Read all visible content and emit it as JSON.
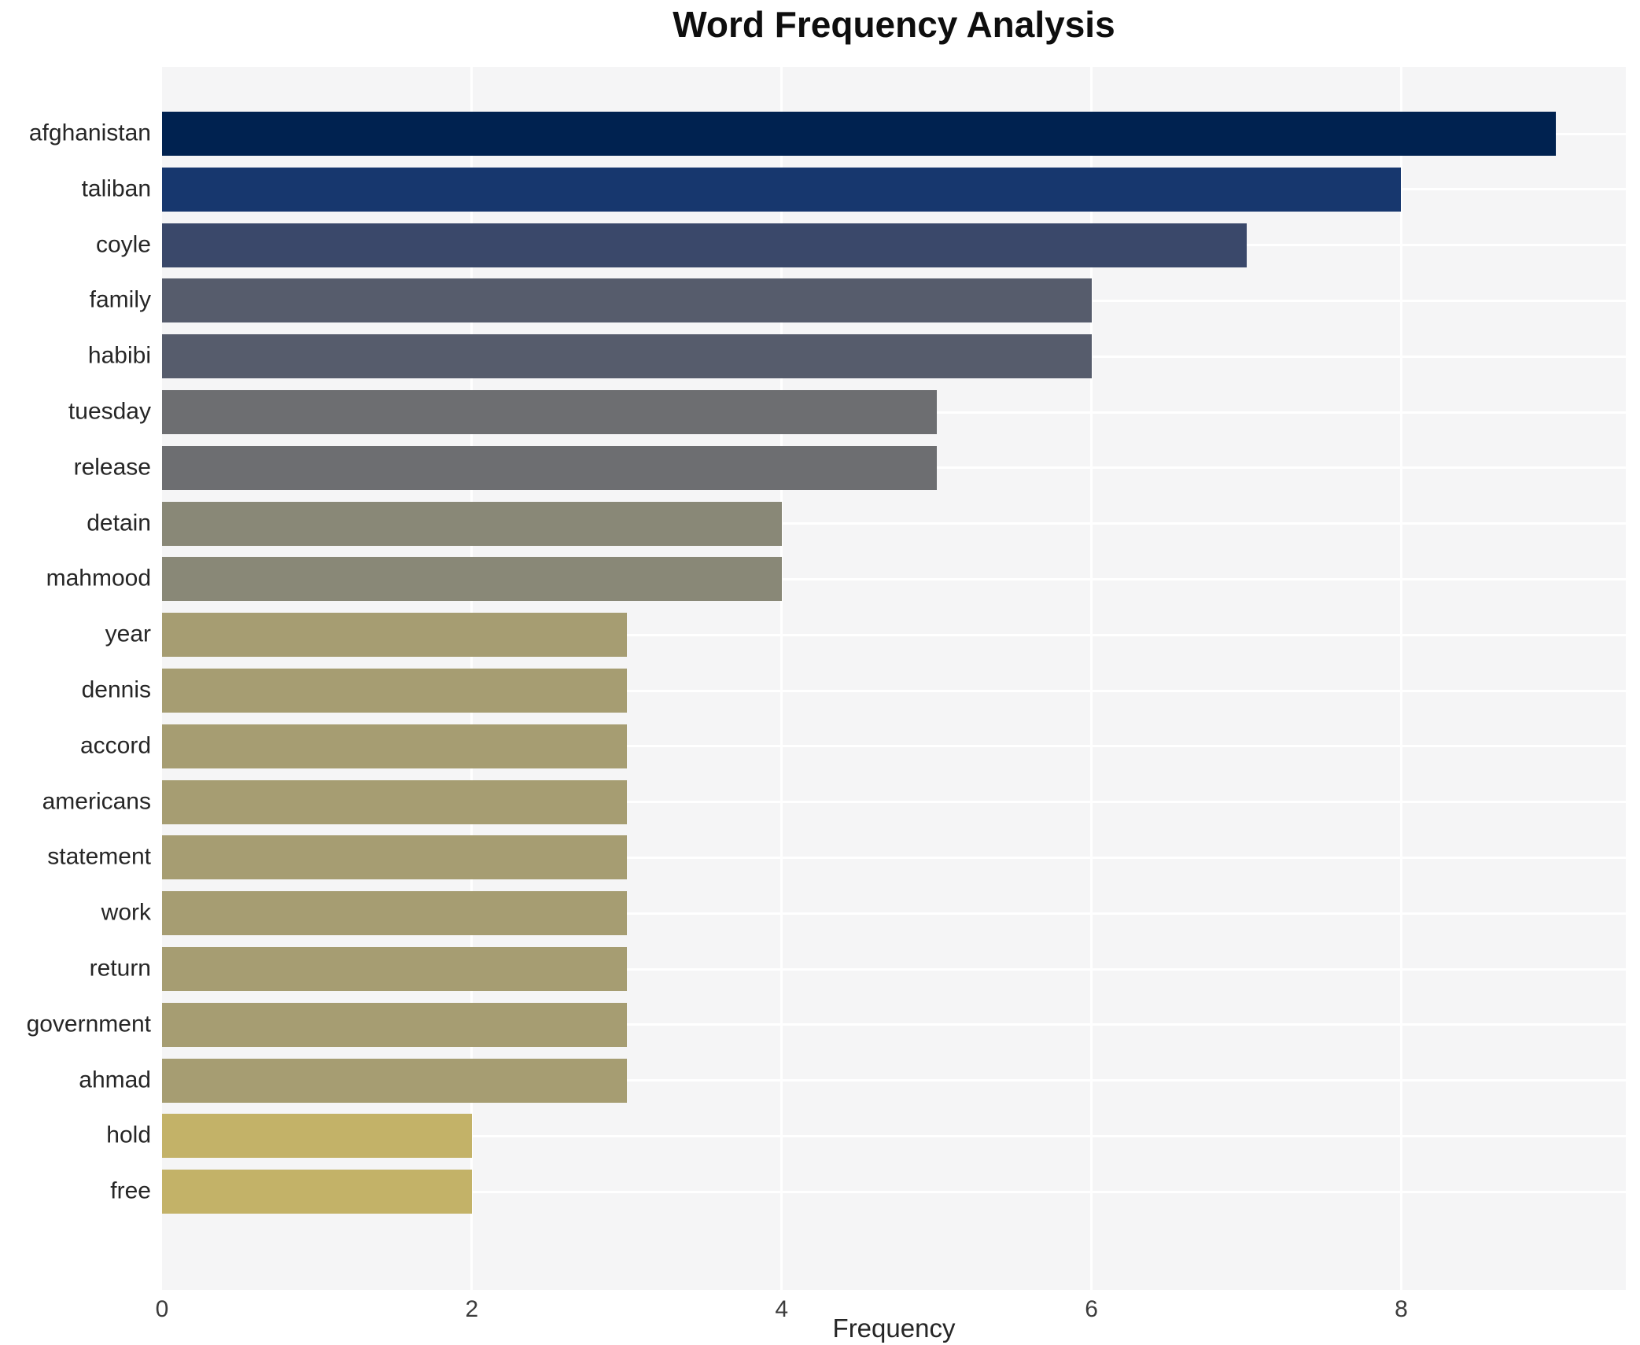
{
  "chart_data": {
    "type": "bar",
    "orientation": "horizontal",
    "title": "Word Frequency Analysis",
    "xlabel": "Frequency",
    "ylabel": "",
    "categories": [
      "afghanistan",
      "taliban",
      "coyle",
      "family",
      "habibi",
      "tuesday",
      "release",
      "detain",
      "mahmood",
      "year",
      "dennis",
      "accord",
      "americans",
      "statement",
      "work",
      "return",
      "government",
      "ahmad",
      "hold",
      "free"
    ],
    "values": [
      9,
      8,
      7,
      6,
      6,
      5,
      5,
      4,
      4,
      3,
      3,
      3,
      3,
      3,
      3,
      3,
      3,
      3,
      2,
      2
    ],
    "bar_colors": [
      "#002250",
      "#17376e",
      "#3a486a",
      "#565c6c",
      "#565c6c",
      "#6d6e71",
      "#6d6e71",
      "#898877",
      "#898877",
      "#a69d72",
      "#a69d72",
      "#a69d72",
      "#a69d72",
      "#a69d72",
      "#a69d72",
      "#a69d72",
      "#a69d72",
      "#a69d72",
      "#c3b268",
      "#c3b268"
    ],
    "xlim": [
      0,
      9.45
    ],
    "xticks": [
      0,
      2,
      4,
      6,
      8
    ],
    "grid": true,
    "legend": "none",
    "colors": {
      "plot_background": "#f5f5f6",
      "figure_background": "#ffffff",
      "grid_color": "#ffffff",
      "title_color": "#0e0e0e",
      "tick_label_color": "#3c3c3c",
      "category_label_color": "#262626"
    }
  }
}
